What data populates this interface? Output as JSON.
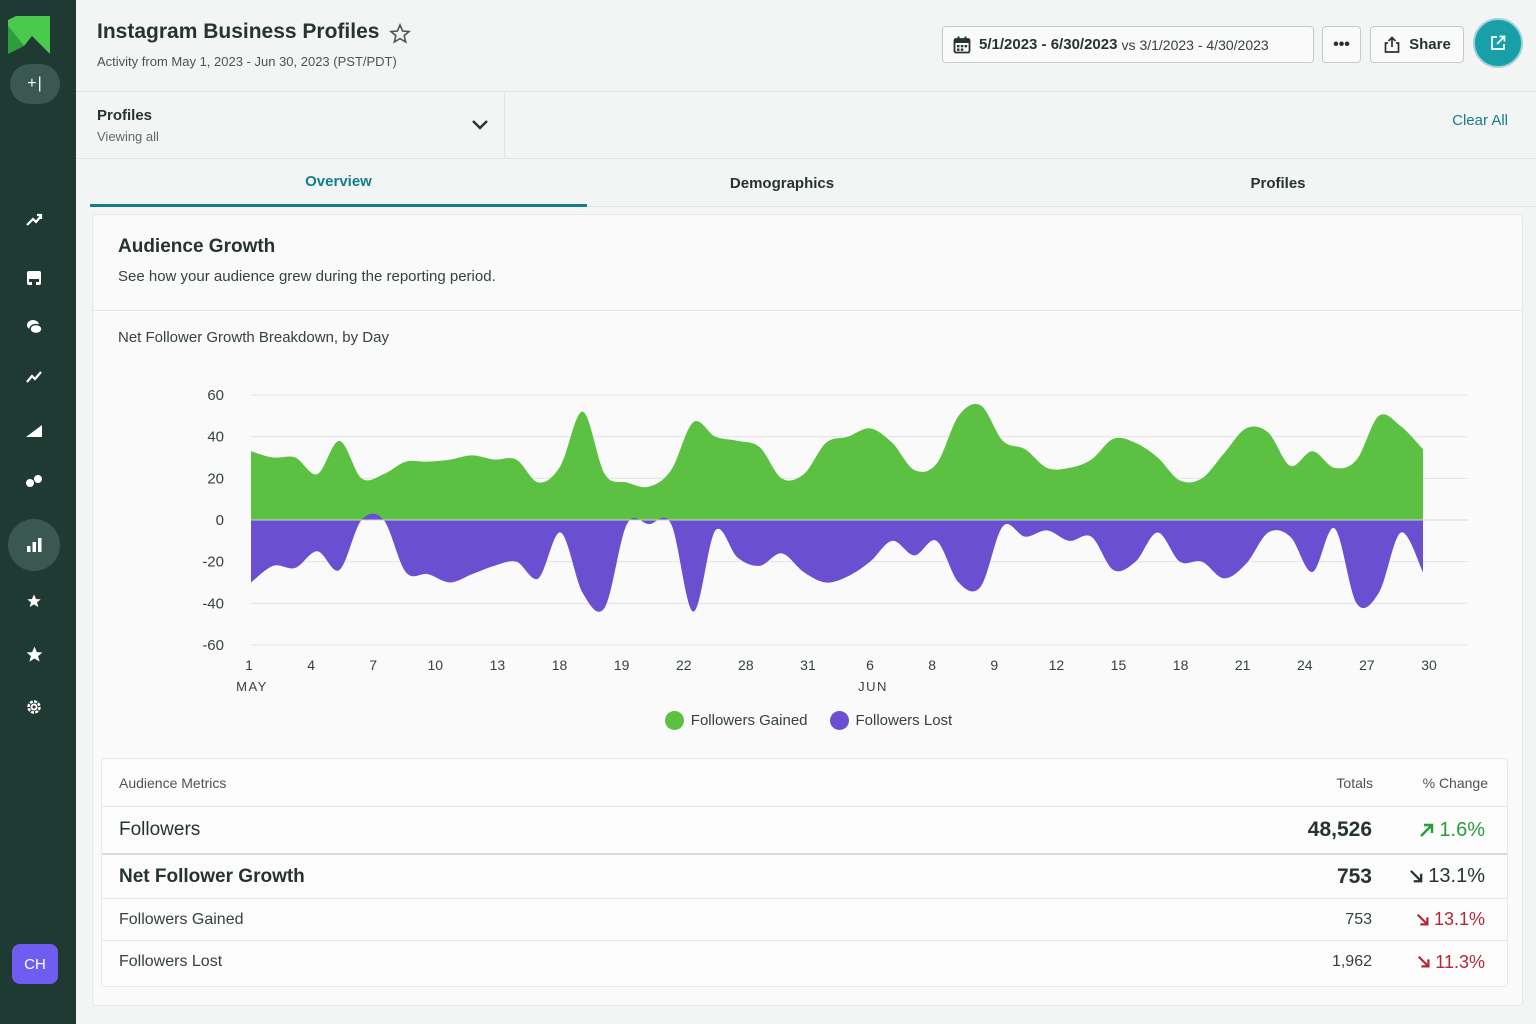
{
  "app": {
    "title": "Instagram Business Profiles",
    "subtitle": "Activity from May 1, 2023 - Jun 30, 2023 (PST/PDT)",
    "compose_label": "+|",
    "avatar_initials": "CH",
    "accent": "#127e8e",
    "sidebar_bg": "#1f3a32"
  },
  "header": {
    "date_range": "5/1/2023 - 6/30/2023",
    "vs_label": "vs",
    "compare_range": "3/1/2023 - 4/30/2023",
    "more_label": "•••",
    "share_label": "Share"
  },
  "sidebar": {
    "icons": [
      "trend-arrow-icon",
      "inbox-icon",
      "messages-icon",
      "listening-icon",
      "reach-icon",
      "campaigns-icon",
      "reports-icon",
      "reviews-icon",
      "favorites-icon",
      "settings-icon"
    ]
  },
  "filter": {
    "label": "Profiles",
    "value": "Viewing all",
    "clear_label": "Clear All"
  },
  "tabs": [
    {
      "label": "Overview",
      "active": true
    },
    {
      "label": "Demographics",
      "active": false
    },
    {
      "label": "Profiles",
      "active": false
    }
  ],
  "card": {
    "title": "Audience Growth",
    "description": "See how your audience grew during the reporting period.",
    "chart_title": "Net Follower Growth Breakdown, by Day"
  },
  "chart_data": {
    "type": "area",
    "title": "Net Follower Growth Breakdown, by Day",
    "x_ticks": [
      "1",
      "4",
      "7",
      "10",
      "13",
      "18",
      "19",
      "22",
      "28",
      "31",
      "6",
      "8",
      "9",
      "12",
      "15",
      "18",
      "21",
      "24",
      "27",
      "30"
    ],
    "month_labels": [
      {
        "label": "MAY",
        "at_tick": 0
      },
      {
        "label": "JUN",
        "at_tick": 10
      }
    ],
    "y_ticks": [
      60,
      40,
      20,
      0,
      -20,
      -40,
      -60
    ],
    "ylim": [
      -60,
      60
    ],
    "grid": true,
    "legend_position": "bottom",
    "series": [
      {
        "name": "Followers Gained",
        "color": "#5cc143",
        "values": [
          33,
          30,
          30,
          22,
          38,
          20,
          22,
          28,
          28,
          29,
          31,
          29,
          29,
          18,
          26,
          52,
          22,
          18,
          16,
          24,
          47,
          40,
          38,
          35,
          20,
          22,
          37,
          40,
          44,
          37,
          24,
          27,
          50,
          55,
          38,
          34,
          25,
          25,
          29,
          39,
          37,
          30,
          19,
          20,
          32,
          44,
          42,
          26,
          33,
          25,
          29,
          50,
          45,
          34
        ]
      },
      {
        "name": "Followers Lost",
        "color": "#6a4fd0",
        "values": [
          -30,
          -22,
          -23,
          -15,
          -24,
          0,
          0,
          -25,
          -26,
          -30,
          -26,
          -22,
          -20,
          -28,
          -6,
          -35,
          -42,
          -2,
          -2,
          -2,
          -44,
          -5,
          -18,
          -22,
          -16,
          -25,
          -30,
          -27,
          -20,
          -10,
          -17,
          -10,
          -30,
          -32,
          -3,
          -8,
          -5,
          -10,
          -8,
          -24,
          -20,
          -6,
          -20,
          -20,
          -28,
          -21,
          -6,
          -8,
          -25,
          -4,
          -40,
          -35,
          -6,
          -25
        ]
      }
    ]
  },
  "metrics": {
    "header": {
      "label": "Audience Metrics",
      "totals": "Totals",
      "change": "% Change"
    },
    "rows": [
      {
        "label": "Followers",
        "total": "48,526",
        "change": "1.6%",
        "direction": "up"
      },
      {
        "label": "Net Follower Growth",
        "total": "753",
        "change": "13.1%",
        "direction": "down"
      },
      {
        "label": "Followers Gained",
        "total": "753",
        "change": "13.1%",
        "direction": "down"
      },
      {
        "label": "Followers Lost",
        "total": "1,962",
        "change": "11.3%",
        "direction": "down"
      }
    ]
  }
}
